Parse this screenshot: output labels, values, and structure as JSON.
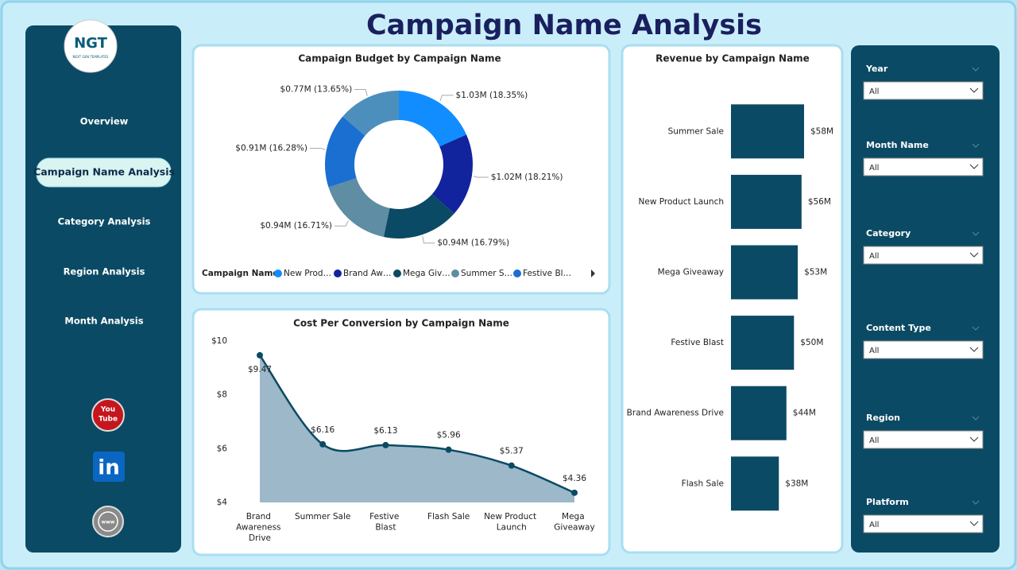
{
  "header": {
    "title": "Campaign Name Analysis"
  },
  "logo": {
    "text": "NGT",
    "subtitle": "NEXT GEN TEMPLATES"
  },
  "nav": {
    "items": [
      "Overview",
      "Campaign Name Analysis",
      "Category Analysis",
      "Region Analysis",
      "Month Analysis"
    ],
    "active": 1
  },
  "icons": {
    "youtube": [
      "You",
      "Tube"
    ],
    "linkedin": "in",
    "web": "www"
  },
  "filters": [
    {
      "label": "Year",
      "value": "All"
    },
    {
      "label": "Month Name",
      "value": "All"
    },
    {
      "label": "Category",
      "value": "All"
    },
    {
      "label": "Content Type",
      "value": "All"
    },
    {
      "label": "Region",
      "value": "All"
    },
    {
      "label": "Platform",
      "value": "All"
    }
  ],
  "chart_data": [
    {
      "type": "pie",
      "donut": true,
      "title": "Campaign Budget by Campaign Name",
      "legend_title": "Campaign Name",
      "legend": "bottom",
      "categories": [
        "New Prod…",
        "Brand Aw…",
        "Mega Giv…",
        "Summer S…",
        "Festive Bl…",
        null
      ],
      "values": [
        1030000,
        1020000,
        940000,
        940000,
        910000,
        770000
      ],
      "value_labels": [
        "$1.03M (18.35%)",
        "$1.02M (18.21%)",
        "$0.94M (16.79%)",
        "$0.94M (16.71%)",
        "$0.91M (16.28%)",
        "$0.77M (13.65%)"
      ],
      "colors": [
        "#118dff",
        "#12239e",
        "#0b4a64",
        "#5f8da3",
        "#1a6fd0",
        "#4c8fbd"
      ]
    },
    {
      "type": "area",
      "title": "Cost Per Conversion by Campaign Name",
      "categories": [
        "Brand Awareness Drive",
        "Summer Sale",
        "Festive Blast",
        "Flash Sale",
        "New Product Launch",
        "Mega Giveaway"
      ],
      "values": [
        9.47,
        6.16,
        6.13,
        5.96,
        5.37,
        4.36
      ],
      "value_labels": [
        "$9.47",
        "$6.16",
        "$6.13",
        "$5.96",
        "$5.37",
        "$4.36"
      ],
      "ylim": [
        4,
        10
      ],
      "yticks": [
        {
          "value": 4,
          "label": "$4"
        },
        {
          "value": 6,
          "label": "$6"
        },
        {
          "value": 8,
          "label": "$8"
        },
        {
          "value": 10,
          "label": "$10"
        }
      ],
      "color": "#0b4a64",
      "fill": "#9db8c8"
    },
    {
      "type": "bar",
      "orientation": "horizontal",
      "title": "Revenue by Campaign Name",
      "categories": [
        "Summer Sale",
        "New Product Launch",
        "Mega Giveaway",
        "Festive Blast",
        "Brand Awareness Drive",
        "Flash Sale"
      ],
      "values": [
        58000000,
        56000000,
        53000000,
        50000000,
        44000000,
        38000000
      ],
      "value_labels": [
        "$58M",
        "$56M",
        "$53M",
        "$50M",
        "$44M",
        "$38M"
      ],
      "color": "#0b4a64"
    }
  ]
}
